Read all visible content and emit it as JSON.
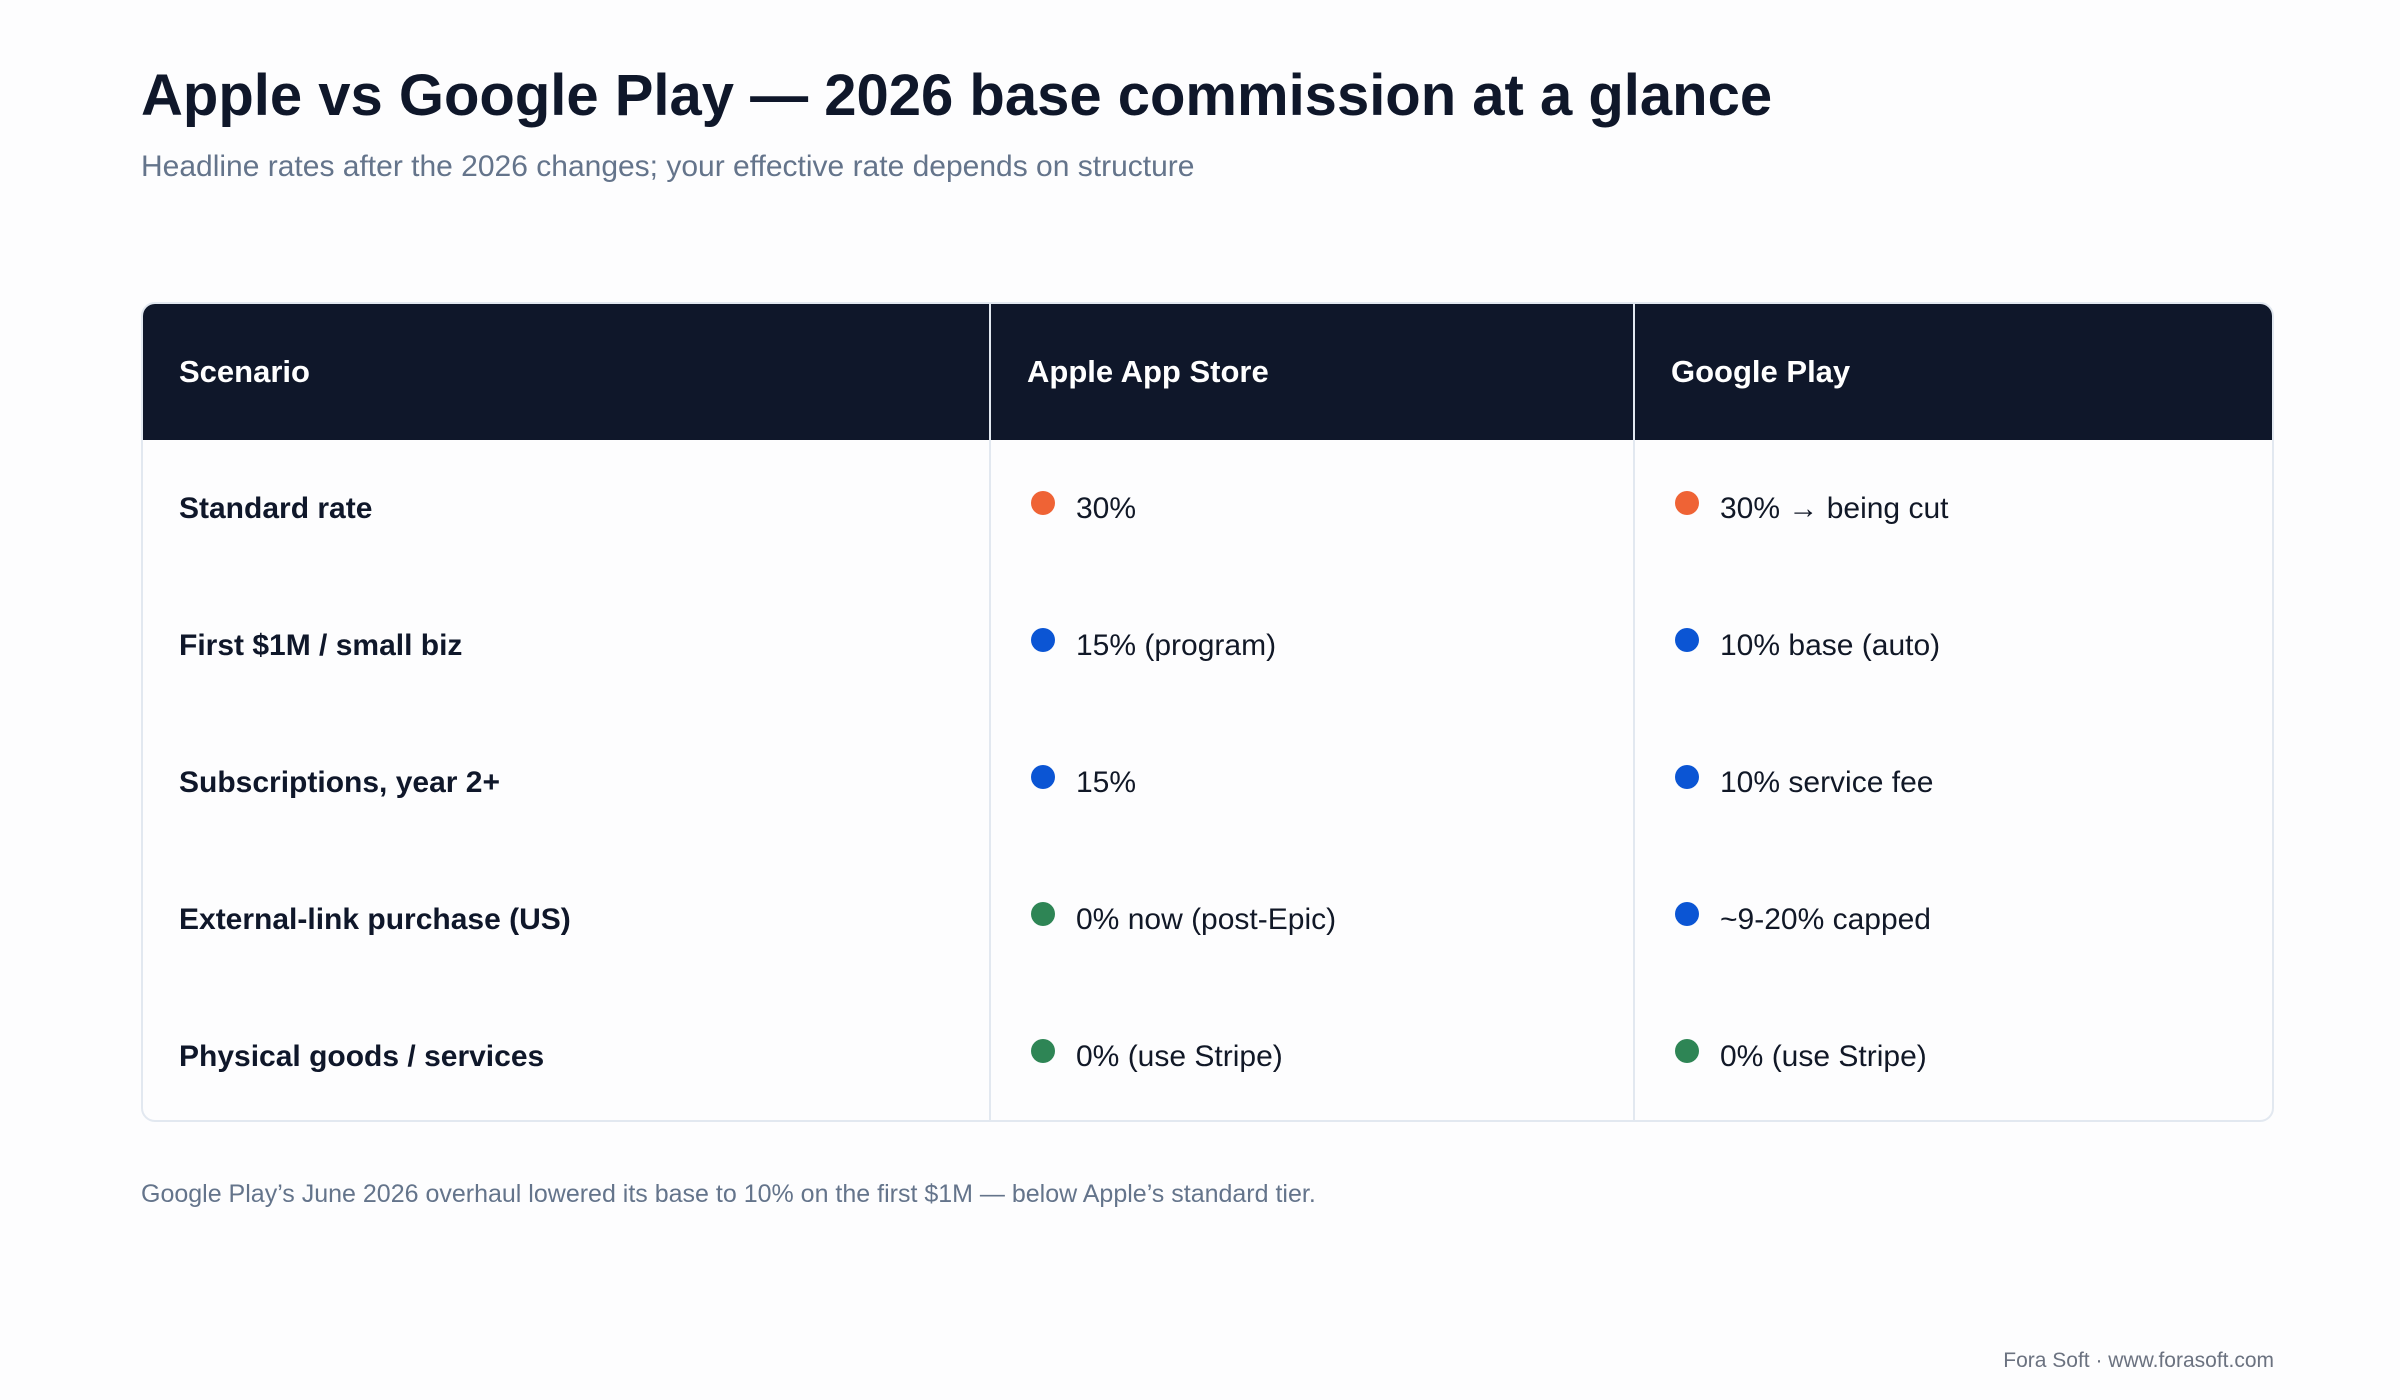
{
  "title": "Apple vs Google Play — 2026 base commission at a glance",
  "subtitle": "Headline rates after the 2026 changes; your effective rate depends on structure",
  "table": {
    "headers": [
      "Scenario",
      "Apple App Store",
      "Google Play"
    ],
    "rows": [
      {
        "scenario": "Standard rate",
        "apple": {
          "text": "30%",
          "dot_color": "#ef6335"
        },
        "google": {
          "text": "30% → being cut",
          "dot_color": "#ef6335"
        }
      },
      {
        "scenario": "First $1M / small biz",
        "apple": {
          "text": "15% (program)",
          "dot_color": "#0b55d4"
        },
        "google": {
          "text": "10% base (auto)",
          "dot_color": "#0b55d4"
        }
      },
      {
        "scenario": "Subscriptions, year 2+",
        "apple": {
          "text": "15%",
          "dot_color": "#0b55d4"
        },
        "google": {
          "text": "10% service fee",
          "dot_color": "#0b55d4"
        }
      },
      {
        "scenario": "External-link purchase (US)",
        "apple": {
          "text": "0% now (post-Epic)",
          "dot_color": "#2e8555"
        },
        "google": {
          "text": "~9-20% capped",
          "dot_color": "#0b55d4"
        }
      },
      {
        "scenario": "Physical goods / services",
        "apple": {
          "text": "0% (use Stripe)",
          "dot_color": "#2e8555"
        },
        "google": {
          "text": "0% (use Stripe)",
          "dot_color": "#2e8555"
        }
      }
    ]
  },
  "footnote": "Google Play’s June 2026 overhaul lowered its base to 10% on the first $1M — below Apple’s standard tier.",
  "credit": "Fora Soft · www.forasoft.com",
  "colors": {
    "header_bg": "#0f172a",
    "text_muted": "#64748b",
    "border": "#e2e8f0"
  }
}
